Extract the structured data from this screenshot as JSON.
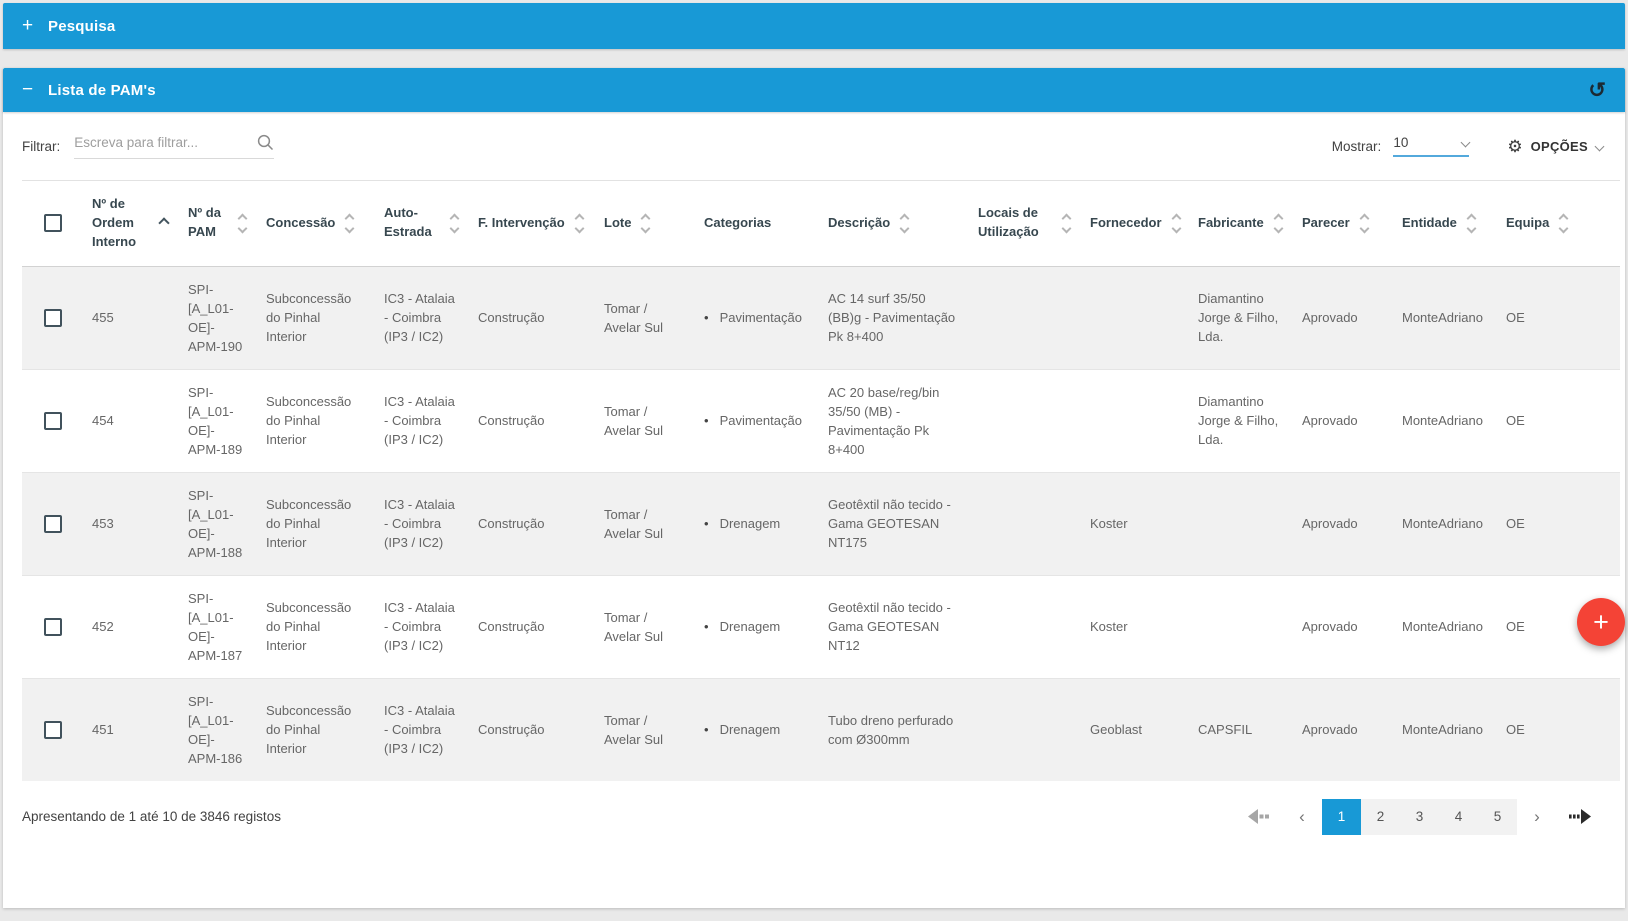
{
  "panels": {
    "pesquisa": {
      "toggle": "+",
      "title": "Pesquisa"
    },
    "lista": {
      "toggle": "−",
      "title": "Lista de PAM's"
    }
  },
  "toolbar": {
    "filter_label": "Filtrar:",
    "filter_placeholder": "Escreva para filtrar...",
    "filter_value": "",
    "show_label": "Mostrar:",
    "show_value": "10",
    "options_label": "OPÇÕES"
  },
  "table": {
    "columns": [
      {
        "label": "",
        "sort": "none"
      },
      {
        "label": "Nº de Ordem Interno",
        "sort": "asc"
      },
      {
        "label": "Nº da PAM",
        "sort": "both"
      },
      {
        "label": "Concessão",
        "sort": "both"
      },
      {
        "label": "Auto-Estrada",
        "sort": "both"
      },
      {
        "label": "F. Intervenção",
        "sort": "both"
      },
      {
        "label": "Lote",
        "sort": "both"
      },
      {
        "label": "Categorias",
        "sort": "none"
      },
      {
        "label": "Descrição",
        "sort": "both"
      },
      {
        "label": "Locais de Utilização",
        "sort": "both"
      },
      {
        "label": "Fornecedor",
        "sort": "both"
      },
      {
        "label": "Fabricante",
        "sort": "both"
      },
      {
        "label": "Parecer",
        "sort": "both"
      },
      {
        "label": "Entidade",
        "sort": "both"
      },
      {
        "label": "Equipa",
        "sort": "both"
      }
    ],
    "rows": [
      {
        "ordem": "455",
        "pam": "SPI-[A_L01-OE]-APM-190",
        "concessao": "Subconcessão do Pinhal Interior",
        "auto_estrada": "IC3 - Atalaia - Coimbra (IP3 / IC2)",
        "f_intervencao": "Construção",
        "lote": "Tomar / Avelar Sul",
        "categorias": [
          "Pavimentação"
        ],
        "descricao": "AC 14 surf 35/50 (BB)g - Pavimentação Pk 8+400",
        "locais": "",
        "fornecedor": "",
        "fabricante": "Diamantino Jorge & Filho, Lda.",
        "parecer": "Aprovado",
        "entidade": "MonteAdriano",
        "equipa": "OE"
      },
      {
        "ordem": "454",
        "pam": "SPI-[A_L01-OE]-APM-189",
        "concessao": "Subconcessão do Pinhal Interior",
        "auto_estrada": "IC3 - Atalaia - Coimbra (IP3 / IC2)",
        "f_intervencao": "Construção",
        "lote": "Tomar / Avelar Sul",
        "categorias": [
          "Pavimentação"
        ],
        "descricao": "AC 20 base/reg/bin 35/50 (MB) - Pavimentação Pk 8+400",
        "locais": "",
        "fornecedor": "",
        "fabricante": "Diamantino Jorge & Filho, Lda.",
        "parecer": "Aprovado",
        "entidade": "MonteAdriano",
        "equipa": "OE"
      },
      {
        "ordem": "453",
        "pam": "SPI-[A_L01-OE]-APM-188",
        "concessao": "Subconcessão do Pinhal Interior",
        "auto_estrada": "IC3 - Atalaia - Coimbra (IP3 / IC2)",
        "f_intervencao": "Construção",
        "lote": "Tomar / Avelar Sul",
        "categorias": [
          "Drenagem"
        ],
        "descricao": "Geotêxtil não tecido - Gama GEOTESAN NT175",
        "locais": "",
        "fornecedor": "Koster",
        "fabricante": "",
        "parecer": "Aprovado",
        "entidade": "MonteAdriano",
        "equipa": "OE"
      },
      {
        "ordem": "452",
        "pam": "SPI-[A_L01-OE]-APM-187",
        "concessao": "Subconcessão do Pinhal Interior",
        "auto_estrada": "IC3 - Atalaia - Coimbra (IP3 / IC2)",
        "f_intervencao": "Construção",
        "lote": "Tomar / Avelar Sul",
        "categorias": [
          "Drenagem"
        ],
        "descricao": "Geotêxtil não tecido - Gama GEOTESAN NT12",
        "locais": "",
        "fornecedor": "Koster",
        "fabricante": "",
        "parecer": "Aprovado",
        "entidade": "MonteAdriano",
        "equipa": "OE"
      },
      {
        "ordem": "451",
        "pam": "SPI-[A_L01-OE]-APM-186",
        "concessao": "Subconcessão do Pinhal Interior",
        "auto_estrada": "IC3 - Atalaia - Coimbra (IP3 / IC2)",
        "f_intervencao": "Construção",
        "lote": "Tomar / Avelar Sul",
        "categorias": [
          "Drenagem"
        ],
        "descricao": "Tubo dreno perfurado com Ø300mm",
        "locais": "",
        "fornecedor": "Geoblast",
        "fabricante": "CAPSFIL",
        "parecer": "Aprovado",
        "entidade": "MonteAdriano",
        "equipa": "OE"
      }
    ]
  },
  "footer": {
    "summary": "Apresentando de 1 até 10 de 3846 registos",
    "pagination": {
      "prev": "‹",
      "next": "›",
      "pages": [
        "1",
        "2",
        "3",
        "4",
        "5"
      ],
      "active": "1"
    }
  },
  "fab": {
    "label": "+"
  },
  "icons": {
    "refresh": "↺",
    "gear": "⚙",
    "categoria_bullet": "•"
  },
  "colors": {
    "accent": "#1899d6",
    "fab": "#f44336",
    "row_alt": "#f1f1f1"
  }
}
